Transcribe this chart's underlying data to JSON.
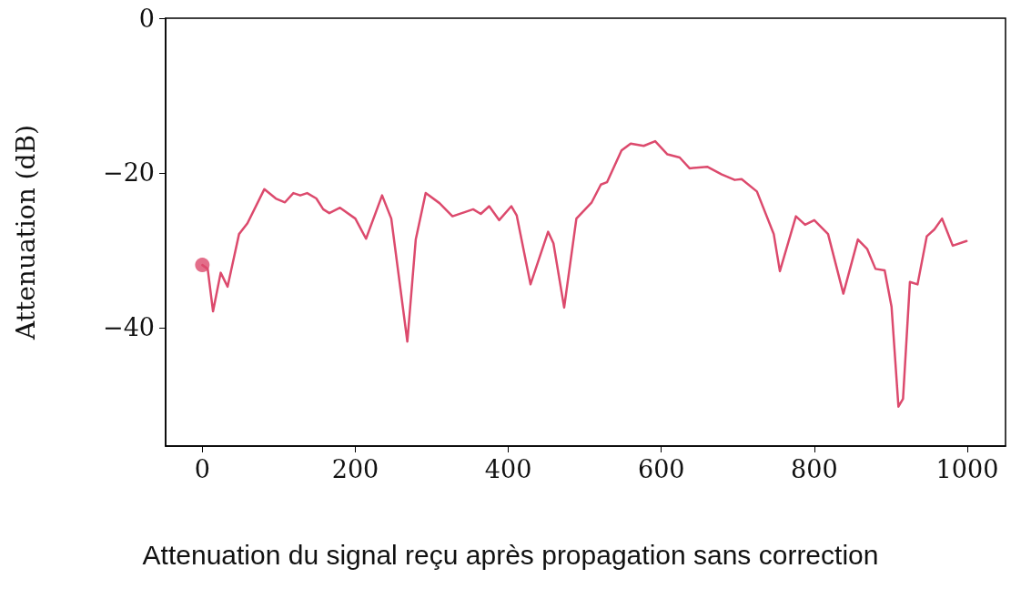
{
  "chart_data": {
    "type": "line",
    "ylabel": "Attenuation (dB)",
    "annotations": [
      "Attenuation du signal reçu après propagation sans correction"
    ],
    "xlim": [
      -48,
      1050
    ],
    "ylim": [
      -55.3,
      0
    ],
    "xticks": [
      0,
      200,
      400,
      600,
      800,
      1000
    ],
    "yticks": [
      0,
      {
        "value": -20,
        "label": "−20"
      },
      {
        "value": -40,
        "label": "−40"
      }
    ],
    "marker": "none",
    "line_style": "solid",
    "series": [
      {
        "color": "#dc4a6d",
        "x": [
          0,
          7,
          14,
          24,
          33,
          48,
          59,
          81,
          96,
          108,
          119,
          128,
          137,
          149,
          158,
          166,
          180,
          200,
          214,
          235,
          247,
          268,
          279,
          292,
          310,
          327,
          354,
          364,
          375,
          388,
          404,
          411,
          429,
          452,
          459,
          473,
          489,
          509,
          521,
          529,
          548,
          560,
          577,
          592,
          608,
          624,
          637,
          660,
          679,
          696,
          705,
          725,
          747,
          755,
          776,
          788,
          800,
          818,
          838,
          857,
          869,
          880,
          892,
          901,
          910,
          916,
          925,
          935,
          947,
          957,
          967,
          981,
          999
        ],
        "values": [
          -31.9,
          -32.4,
          -37.9,
          -32.9,
          -34.7,
          -27.9,
          -26.5,
          -22.1,
          -23.3,
          -23.8,
          -22.6,
          -22.9,
          -22.6,
          -23.3,
          -24.7,
          -25.2,
          -24.5,
          -25.9,
          -28.5,
          -22.9,
          -25.9,
          -41.8,
          -28.6,
          -22.6,
          -23.9,
          -25.6,
          -24.7,
          -25.3,
          -24.3,
          -26.1,
          -24.3,
          -25.5,
          -34.4,
          -27.6,
          -29.1,
          -37.4,
          -25.9,
          -23.8,
          -21.5,
          -21.2,
          -17.1,
          -16.2,
          -16.5,
          -15.9,
          -17.6,
          -18.0,
          -19.4,
          -19.2,
          -20.2,
          -20.9,
          -20.8,
          -22.4,
          -27.9,
          -32.7,
          -25.6,
          -26.7,
          -26.1,
          -27.9,
          -35.6,
          -28.6,
          -29.8,
          -32.4,
          -32.6,
          -37.3,
          -50.2,
          -49.2,
          -34.1,
          -34.4,
          -28.2,
          -27.3,
          -25.9,
          -29.4,
          -28.8
        ]
      },
      {
        "type": "scatter",
        "marker": "circle",
        "color": "#dc4a6d",
        "x": [
          0
        ],
        "values": [
          -31.9
        ]
      }
    ]
  }
}
